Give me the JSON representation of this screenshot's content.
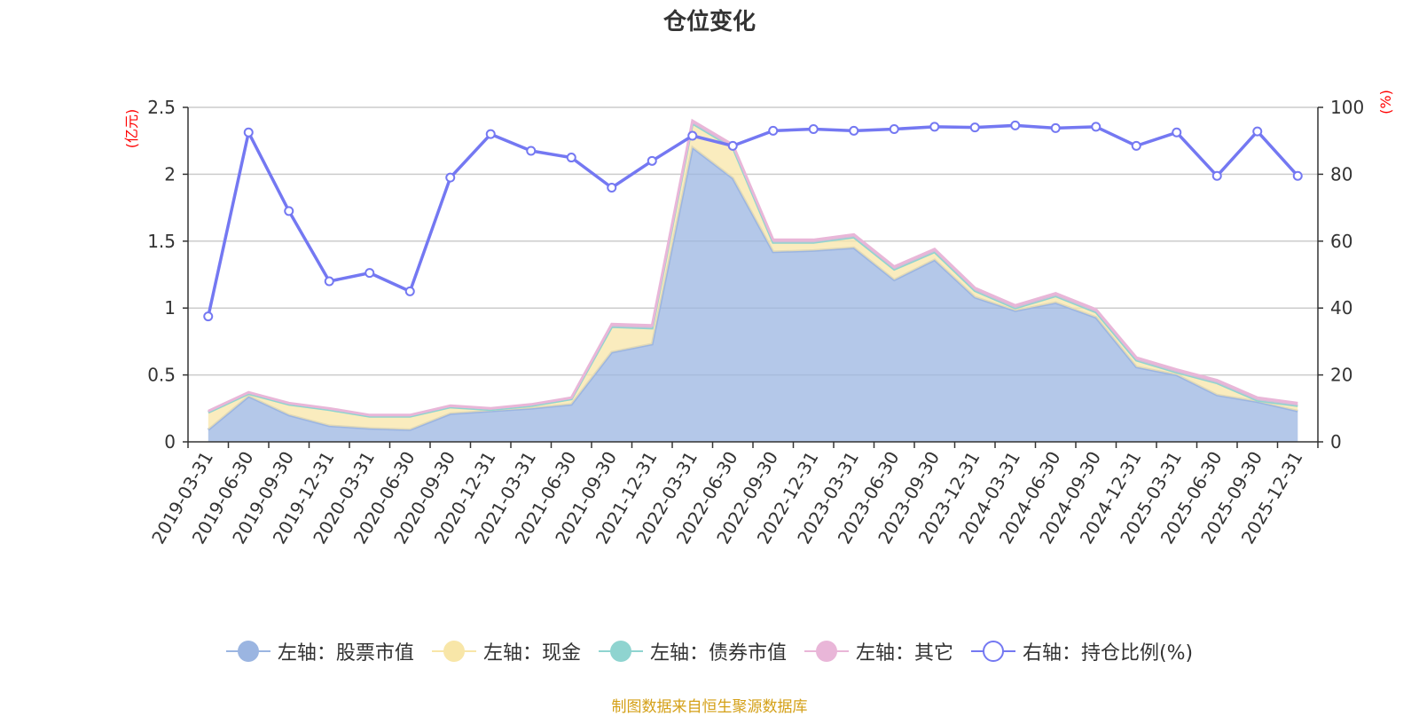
{
  "title": "仓位变化",
  "source_note": "制图数据来自恒生聚源数据库",
  "legend": [
    {
      "label": "左轴：股票市值",
      "color": "#9bb5e1",
      "hollow": false
    },
    {
      "label": "左轴：现金",
      "color": "#f8e6a8",
      "hollow": false
    },
    {
      "label": "左轴：债券市值",
      "color": "#8fd4d0",
      "hollow": false
    },
    {
      "label": "左轴：其它",
      "color": "#e9b6d8",
      "hollow": false
    },
    {
      "label": "右轴：持仓比例(%)",
      "color": "#7478f2",
      "hollow": true
    }
  ],
  "chart_data": {
    "type": "area",
    "left_axis_unit": "(亿元)",
    "right_axis_unit": "(%)",
    "ylim_left": [
      0,
      2.5
    ],
    "ylim_right": [
      0,
      100
    ],
    "left_ticks": [
      "0",
      "0.5",
      "1",
      "1.5",
      "2",
      "2.5"
    ],
    "right_ticks": [
      "0",
      "20",
      "40",
      "60",
      "80",
      "100"
    ],
    "categories": [
      "2019-03-31",
      "2019-06-30",
      "2019-09-30",
      "2019-12-31",
      "2020-03-31",
      "2020-06-30",
      "2020-09-30",
      "2020-12-31",
      "2021-03-31",
      "2021-06-30",
      "2021-09-30",
      "2021-12-31",
      "2022-03-31",
      "2022-06-30",
      "2022-09-30",
      "2022-12-31",
      "2023-03-31",
      "2023-06-30",
      "2023-09-30",
      "2023-12-31",
      "2024-03-31",
      "2024-06-30",
      "2024-09-30",
      "2024-12-31",
      "2025-03-31",
      "2025-06-30",
      "2025-09-30",
      "2025-12-31"
    ],
    "series": [
      {
        "name": "左轴：股票市值",
        "axis": "left",
        "color": "#9bb5e1",
        "values": [
          0.09,
          0.34,
          0.2,
          0.12,
          0.1,
          0.09,
          0.21,
          0.23,
          0.25,
          0.28,
          0.67,
          0.73,
          2.2,
          1.97,
          1.42,
          1.43,
          1.45,
          1.21,
          1.36,
          1.08,
          0.98,
          1.04,
          0.93,
          0.56,
          0.5,
          0.35,
          0.3,
          0.23
        ]
      },
      {
        "name": "左轴：现金",
        "axis": "left",
        "color": "#f8e6a8",
        "values": [
          0.13,
          0.02,
          0.08,
          0.12,
          0.09,
          0.1,
          0.05,
          0.01,
          0.02,
          0.04,
          0.19,
          0.12,
          0.18,
          0.23,
          0.07,
          0.06,
          0.08,
          0.08,
          0.06,
          0.05,
          0.02,
          0.05,
          0.04,
          0.05,
          0.02,
          0.09,
          0.01,
          0.04
        ]
      },
      {
        "name": "左轴：债券市值",
        "axis": "left",
        "color": "#8fd4d0",
        "values": [
          0,
          0,
          0,
          0,
          0,
          0,
          0,
          0,
          0,
          0,
          0,
          0,
          0,
          0,
          0,
          0,
          0,
          0,
          0,
          0,
          0,
          0,
          0,
          0,
          0,
          0,
          0,
          0
        ]
      },
      {
        "name": "左轴：其它",
        "axis": "left",
        "color": "#e9b6d8",
        "values": [
          0.01,
          0.01,
          0.01,
          0.01,
          0.01,
          0.01,
          0.01,
          0.01,
          0.01,
          0.01,
          0.02,
          0.02,
          0.02,
          0.02,
          0.02,
          0.02,
          0.02,
          0.02,
          0.02,
          0.02,
          0.02,
          0.02,
          0.02,
          0.02,
          0.02,
          0.02,
          0.02,
          0.02
        ]
      },
      {
        "name": "右轴：持仓比例(%)",
        "axis": "right",
        "color": "#7478f2",
        "values": [
          37.5,
          92.5,
          69.0,
          48.0,
          50.5,
          45.0,
          79.0,
          92.0,
          87.0,
          85.0,
          76.0,
          84.0,
          91.5,
          88.5,
          93.0,
          93.5,
          93.0,
          93.5,
          94.2,
          94.0,
          94.6,
          93.8,
          94.2,
          88.5,
          92.5,
          79.5,
          92.8,
          79.5
        ]
      }
    ]
  }
}
